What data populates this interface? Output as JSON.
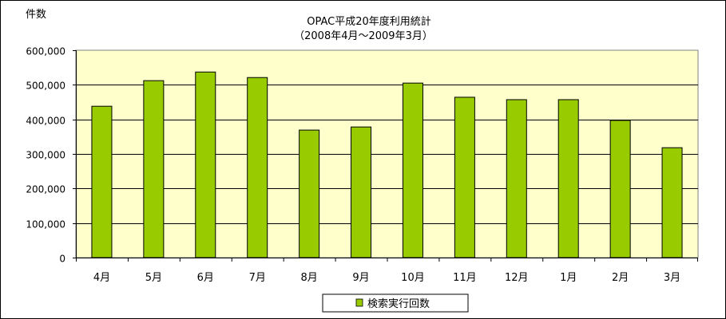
{
  "chart_data": {
    "type": "bar",
    "title": "OPAC平成20年度利用統計",
    "subtitle": "（2008年4月～2009年3月）",
    "ylabel": "件数",
    "xlabel": "",
    "categories": [
      "4月",
      "5月",
      "6月",
      "7月",
      "8月",
      "9月",
      "10月",
      "11月",
      "12月",
      "1月",
      "2月",
      "3月"
    ],
    "series": [
      {
        "name": "検索実行回数",
        "color": "#99cc00",
        "values": [
          438000,
          512000,
          537000,
          521000,
          369000,
          378000,
          505000,
          464000,
          457000,
          457000,
          397000,
          318000
        ]
      }
    ],
    "ylim": [
      0,
      600000
    ],
    "yticks": [
      0,
      100000,
      200000,
      300000,
      400000,
      500000,
      600000
    ],
    "ytick_labels": [
      "0",
      "100,000",
      "200,000",
      "300,000",
      "400,000",
      "500,000",
      "600,000"
    ],
    "grid": true,
    "plot_background": "#ffffcc",
    "legend_position": "bottom"
  }
}
